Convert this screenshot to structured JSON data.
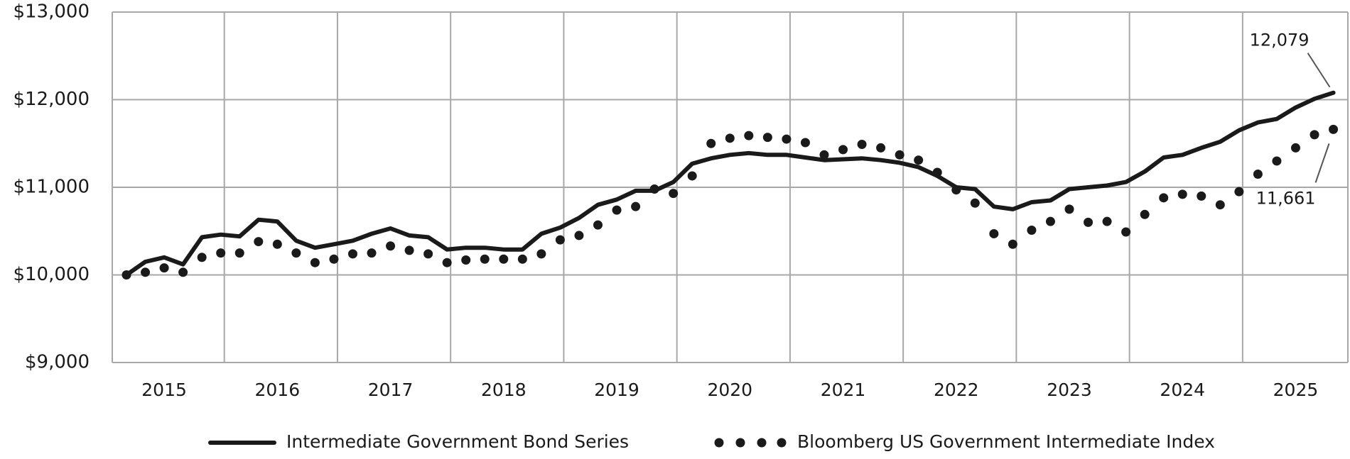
{
  "chart_data": {
    "type": "line",
    "categories": [
      null,
      null,
      "2015",
      null,
      null,
      null,
      null,
      null,
      "2016",
      null,
      null,
      null,
      null,
      null,
      "2017",
      null,
      null,
      null,
      null,
      null,
      "2018",
      null,
      null,
      null,
      null,
      null,
      "2019",
      null,
      null,
      null,
      null,
      null,
      "2020",
      null,
      null,
      null,
      null,
      null,
      "2021",
      null,
      null,
      null,
      null,
      null,
      "2022",
      null,
      null,
      null,
      null,
      null,
      "2023",
      null,
      null,
      null,
      null,
      null,
      "2024",
      null,
      null,
      null,
      null,
      null,
      "2025",
      null,
      null
    ],
    "series": [
      {
        "name": "Intermediate Government Bond Series",
        "color": "#1a1a1a",
        "style": "solid",
        "values": [
          10000,
          10150,
          10200,
          10120,
          10430,
          10460,
          10440,
          10630,
          10610,
          10390,
          10310,
          10350,
          10390,
          10470,
          10530,
          10450,
          10430,
          10290,
          10310,
          10310,
          10290,
          10290,
          10470,
          10540,
          10650,
          10800,
          10860,
          10960,
          10960,
          11060,
          11270,
          11330,
          11370,
          11390,
          11370,
          11370,
          11340,
          11310,
          11320,
          11330,
          11310,
          11280,
          11230,
          11130,
          11000,
          10980,
          10780,
          10750,
          10830,
          10850,
          10980,
          11000,
          11020,
          11060,
          11180,
          11340,
          11370,
          11450,
          11520,
          11650,
          11740,
          11780,
          11910,
          12010,
          12079
        ],
        "value_labels": [
          null,
          null,
          null,
          null,
          null,
          null,
          null,
          null,
          null,
          null,
          null,
          null,
          null,
          null,
          null,
          null,
          null,
          null,
          null,
          null,
          null,
          null,
          null,
          null,
          null,
          null,
          null,
          null,
          null,
          null,
          null,
          null,
          null,
          null,
          null,
          null,
          null,
          null,
          null,
          null,
          null,
          null,
          null,
          null,
          null,
          null,
          null,
          null,
          null,
          null,
          null,
          null,
          null,
          null,
          null,
          null,
          null,
          null,
          null,
          null,
          null,
          null,
          null,
          null,
          "12,079"
        ]
      },
      {
        "name": "Bloomberg US Government Intermediate Index",
        "color": "#1a1a1a",
        "style": "dotted",
        "values": [
          10000,
          10030,
          10080,
          10030,
          10200,
          10250,
          10250,
          10380,
          10350,
          10250,
          10140,
          10180,
          10240,
          10250,
          10330,
          10280,
          10240,
          10140,
          10170,
          10180,
          10180,
          10180,
          10240,
          10400,
          10450,
          10570,
          10740,
          10780,
          10980,
          10930,
          11130,
          11500,
          11560,
          11590,
          11570,
          11550,
          11510,
          11370,
          11430,
          11490,
          11450,
          11370,
          11310,
          11170,
          10970,
          10820,
          10470,
          10350,
          10510,
          10610,
          10750,
          10600,
          10610,
          10490,
          10690,
          10880,
          10920,
          10900,
          10800,
          10950,
          11150,
          11300,
          11450,
          11600,
          11661
        ],
        "value_labels": [
          null,
          null,
          null,
          null,
          null,
          null,
          null,
          null,
          null,
          null,
          null,
          null,
          null,
          null,
          null,
          null,
          null,
          null,
          null,
          null,
          null,
          null,
          null,
          null,
          null,
          null,
          null,
          null,
          null,
          null,
          null,
          null,
          null,
          null,
          null,
          null,
          null,
          null,
          null,
          null,
          null,
          null,
          null,
          null,
          null,
          null,
          null,
          null,
          null,
          null,
          null,
          null,
          null,
          null,
          null,
          null,
          null,
          null,
          null,
          null,
          null,
          null,
          null,
          null,
          "11,661"
        ]
      }
    ],
    "ylim": [
      9000,
      13000
    ],
    "yticks": [
      {
        "value": 9000,
        "label": "$9,000"
      },
      {
        "value": 10000,
        "label": "$10,000"
      },
      {
        "value": 11000,
        "label": "$11,000"
      },
      {
        "value": 12000,
        "label": "$12,000"
      },
      {
        "value": 13000,
        "label": "$13,000"
      }
    ],
    "grid": true,
    "legend": "bottom"
  }
}
